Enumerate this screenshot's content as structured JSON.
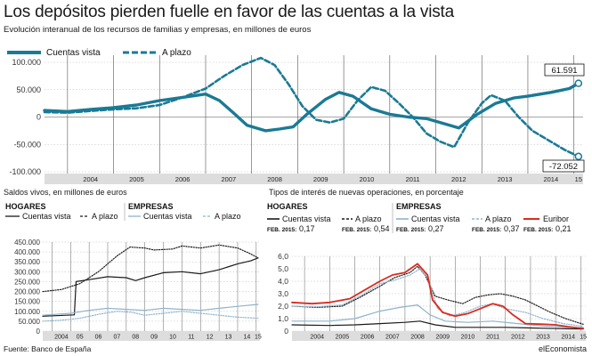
{
  "title": "Los depósitos pierden fuelle en favor de las cuentas a la vista",
  "subtitle": "Evolución interanual de los recursos de familias y empresas, en millones de euros",
  "source": "Fuente: Banco de España",
  "brand": "elEconomista",
  "colors": {
    "teal": "#1a7a95",
    "black": "#1a1a1a",
    "light_blue": "#8fb3cc",
    "red": "#d92b1f",
    "grid": "#bbbbbb",
    "axis_band": "#dddddd"
  },
  "chart_data": [
    {
      "id": "top",
      "type": "line",
      "legend": [
        "Cuentas vista",
        "A plazo"
      ],
      "x_ticks": [
        "2004",
        "2005",
        "2006",
        "2007",
        "2008",
        "2009",
        "2010",
        "2011",
        "2012",
        "2013",
        "2014",
        "15"
      ],
      "y_ticks": [
        "100.000",
        "50.000",
        "0",
        "-50.000",
        "-100.000"
      ],
      "ylim": [
        -100000,
        100000
      ],
      "xlim": [
        2003.5,
        2015.2
      ],
      "annotations": {
        "last_vista": "61.591",
        "last_plazo": "-72.052"
      },
      "series": [
        {
          "name": "Cuentas vista",
          "style": "solid",
          "points": [
            [
              2003.5,
              12000
            ],
            [
              2004.0,
              10000
            ],
            [
              2004.5,
              14000
            ],
            [
              2005.0,
              17000
            ],
            [
              2005.5,
              22000
            ],
            [
              2006.0,
              30000
            ],
            [
              2006.5,
              36000
            ],
            [
              2007.0,
              42000
            ],
            [
              2007.3,
              30000
            ],
            [
              2007.6,
              8000
            ],
            [
              2007.9,
              -15000
            ],
            [
              2008.3,
              -25000
            ],
            [
              2008.6,
              -22000
            ],
            [
              2008.9,
              -18000
            ],
            [
              2009.2,
              5000
            ],
            [
              2009.6,
              32000
            ],
            [
              2009.9,
              45000
            ],
            [
              2010.2,
              38000
            ],
            [
              2010.6,
              15000
            ],
            [
              2011.0,
              5000
            ],
            [
              2011.4,
              0
            ],
            [
              2011.8,
              -3000
            ],
            [
              2012.1,
              -10000
            ],
            [
              2012.5,
              -20000
            ],
            [
              2012.9,
              5000
            ],
            [
              2013.3,
              25000
            ],
            [
              2013.7,
              35000
            ],
            [
              2014.0,
              38000
            ],
            [
              2014.5,
              45000
            ],
            [
              2014.9,
              52000
            ],
            [
              2015.1,
              61591
            ]
          ]
        },
        {
          "name": "A plazo",
          "style": "dashed",
          "points": [
            [
              2003.5,
              9000
            ],
            [
              2004.0,
              8000
            ],
            [
              2004.5,
              11000
            ],
            [
              2005.0,
              14000
            ],
            [
              2005.5,
              16000
            ],
            [
              2006.0,
              22000
            ],
            [
              2006.5,
              36000
            ],
            [
              2007.0,
              52000
            ],
            [
              2007.4,
              75000
            ],
            [
              2007.8,
              95000
            ],
            [
              2008.2,
              108000
            ],
            [
              2008.5,
              95000
            ],
            [
              2008.8,
              60000
            ],
            [
              2009.1,
              20000
            ],
            [
              2009.4,
              -5000
            ],
            [
              2009.7,
              -10000
            ],
            [
              2010.0,
              -3000
            ],
            [
              2010.3,
              30000
            ],
            [
              2010.6,
              55000
            ],
            [
              2010.9,
              48000
            ],
            [
              2011.2,
              25000
            ],
            [
              2011.5,
              0
            ],
            [
              2011.8,
              -30000
            ],
            [
              2012.1,
              -45000
            ],
            [
              2012.4,
              -55000
            ],
            [
              2012.7,
              -10000
            ],
            [
              2013.0,
              25000
            ],
            [
              2013.2,
              40000
            ],
            [
              2013.5,
              30000
            ],
            [
              2013.8,
              0
            ],
            [
              2014.1,
              -25000
            ],
            [
              2014.5,
              -45000
            ],
            [
              2014.8,
              -60000
            ],
            [
              2015.1,
              -72052
            ]
          ]
        }
      ]
    },
    {
      "id": "saldos",
      "type": "line",
      "caption": "Saldos vivos, en millones de euros",
      "legend_groups": [
        {
          "group": "HOGARES",
          "items": [
            "Cuentas vista",
            "A plazo"
          ]
        },
        {
          "group": "EMPRESAS",
          "items": [
            "Cuentas vista",
            "A plazo"
          ]
        }
      ],
      "x_ticks": [
        "2004",
        "05",
        "06",
        "07",
        "08",
        "09",
        "10",
        "11",
        "12",
        "13",
        "14",
        "15"
      ],
      "y_ticks": [
        "450.000",
        "400.000",
        "350.000",
        "300.000",
        "250.000",
        "200.000",
        "150.000",
        "100.000",
        "50.000",
        "0"
      ],
      "ylim": [
        0,
        450000
      ],
      "xlim": [
        2003.5,
        2015.2
      ],
      "series": [
        {
          "name": "Hogares · Cuentas vista",
          "color": "black",
          "style": "solid",
          "points": [
            [
              2003.5,
              75000
            ],
            [
              2005.2,
              82000
            ],
            [
              2005.3,
              250000
            ],
            [
              2006.0,
              260000
            ],
            [
              2007.0,
              275000
            ],
            [
              2008.0,
              270000
            ],
            [
              2008.5,
              255000
            ],
            [
              2009.0,
              270000
            ],
            [
              2010.0,
              295000
            ],
            [
              2011.0,
              300000
            ],
            [
              2012.0,
              290000
            ],
            [
              2013.0,
              310000
            ],
            [
              2014.0,
              340000
            ],
            [
              2014.7,
              355000
            ],
            [
              2015.1,
              370000
            ]
          ]
        },
        {
          "name": "Hogares · A plazo",
          "color": "black",
          "style": "dotted",
          "points": [
            [
              2003.5,
              200000
            ],
            [
              2004.5,
              210000
            ],
            [
              2005.5,
              240000
            ],
            [
              2006.5,
              300000
            ],
            [
              2007.5,
              380000
            ],
            [
              2008.2,
              425000
            ],
            [
              2009.0,
              420000
            ],
            [
              2009.5,
              410000
            ],
            [
              2010.5,
              415000
            ],
            [
              2011.0,
              430000
            ],
            [
              2012.0,
              420000
            ],
            [
              2013.0,
              435000
            ],
            [
              2014.0,
              420000
            ],
            [
              2014.7,
              390000
            ],
            [
              2015.1,
              370000
            ]
          ]
        },
        {
          "name": "Empresas · Cuentas vista",
          "color": "light_blue",
          "style": "solid",
          "points": [
            [
              2003.5,
              80000
            ],
            [
              2005.0,
              90000
            ],
            [
              2006.0,
              105000
            ],
            [
              2007.0,
              115000
            ],
            [
              2008.0,
              110000
            ],
            [
              2009.0,
              105000
            ],
            [
              2010.0,
              115000
            ],
            [
              2011.0,
              110000
            ],
            [
              2012.0,
              105000
            ],
            [
              2013.0,
              115000
            ],
            [
              2014.0,
              125000
            ],
            [
              2015.1,
              135000
            ]
          ]
        },
        {
          "name": "Empresas · A plazo",
          "color": "light_blue",
          "style": "dotted",
          "points": [
            [
              2003.5,
              50000
            ],
            [
              2004.5,
              55000
            ],
            [
              2005.5,
              65000
            ],
            [
              2006.5,
              85000
            ],
            [
              2007.5,
              100000
            ],
            [
              2008.3,
              95000
            ],
            [
              2009.0,
              80000
            ],
            [
              2010.0,
              90000
            ],
            [
              2011.0,
              100000
            ],
            [
              2012.0,
              90000
            ],
            [
              2013.0,
              80000
            ],
            [
              2014.0,
              70000
            ],
            [
              2015.1,
              65000
            ]
          ]
        }
      ]
    },
    {
      "id": "tipos",
      "type": "line",
      "caption": "Tipos de interés de nuevas operaciones, en porcentaje",
      "legend_groups": [
        {
          "group": "HOGARES",
          "items": [
            {
              "label": "Cuentas vista",
              "prefix": "FEB. 2015:",
              "value": "0,17"
            },
            {
              "label": "A plazo",
              "prefix": "FEB. 2015:",
              "value": "0,54"
            }
          ]
        },
        {
          "group": "EMPRESAS",
          "items": [
            {
              "label": "Cuentas vista",
              "prefix": "FEB. 2015:",
              "value": "0,27"
            },
            {
              "label": "A plazo",
              "prefix": "FEB. 2015:",
              "value": "0,37"
            },
            {
              "label": "Euribor",
              "prefix": "FEB. 2015:",
              "value": "0,21"
            }
          ]
        }
      ],
      "x_ticks": [
        "2004",
        "2005",
        "2006",
        "2007",
        "2008",
        "2009",
        "2010",
        "2011",
        "2012",
        "2013",
        "2014",
        "15"
      ],
      "y_ticks": [
        "6,0",
        "5,0",
        "4,0",
        "3,0",
        "2,0",
        "1,0",
        "0"
      ],
      "ylim": [
        0,
        6
      ],
      "xlim": [
        2003.5,
        2015.2
      ],
      "series": [
        {
          "name": "Hogares · Cuentas vista",
          "color": "black",
          "style": "solid",
          "points": [
            [
              2003.5,
              0.5
            ],
            [
              2005.0,
              0.45
            ],
            [
              2006.0,
              0.5
            ],
            [
              2007.0,
              0.6
            ],
            [
              2008.0,
              0.7
            ],
            [
              2008.6,
              0.8
            ],
            [
              2009.2,
              0.5
            ],
            [
              2010.0,
              0.3
            ],
            [
              2011.0,
              0.3
            ],
            [
              2012.0,
              0.3
            ],
            [
              2013.0,
              0.25
            ],
            [
              2014.0,
              0.2
            ],
            [
              2015.1,
              0.17
            ]
          ]
        },
        {
          "name": "Hogares · A plazo",
          "color": "black",
          "style": "dotted",
          "points": [
            [
              2003.5,
              2.0
            ],
            [
              2004.5,
              1.9
            ],
            [
              2005.5,
              2.0
            ],
            [
              2006.2,
              2.7
            ],
            [
              2007.0,
              3.6
            ],
            [
              2007.6,
              4.3
            ],
            [
              2008.2,
              4.7
            ],
            [
              2008.5,
              5.2
            ],
            [
              2008.8,
              4.5
            ],
            [
              2009.2,
              2.8
            ],
            [
              2009.7,
              2.5
            ],
            [
              2010.3,
              2.2
            ],
            [
              2010.8,
              2.7
            ],
            [
              2011.3,
              2.9
            ],
            [
              2011.8,
              3.0
            ],
            [
              2012.3,
              2.8
            ],
            [
              2012.8,
              2.5
            ],
            [
              2013.3,
              2.0
            ],
            [
              2013.8,
              1.5
            ],
            [
              2014.4,
              1.0
            ],
            [
              2015.1,
              0.54
            ]
          ]
        },
        {
          "name": "Empresas · Cuentas vista",
          "color": "light_blue",
          "style": "solid",
          "points": [
            [
              2003.5,
              0.8
            ],
            [
              2005.0,
              0.8
            ],
            [
              2006.0,
              1.0
            ],
            [
              2007.0,
              1.6
            ],
            [
              2007.8,
              1.9
            ],
            [
              2008.5,
              2.1
            ],
            [
              2009.0,
              1.3
            ],
            [
              2009.6,
              0.8
            ],
            [
              2010.5,
              0.7
            ],
            [
              2011.5,
              0.8
            ],
            [
              2012.5,
              0.6
            ],
            [
              2013.5,
              0.4
            ],
            [
              2014.5,
              0.3
            ],
            [
              2015.1,
              0.27
            ]
          ]
        },
        {
          "name": "Empresas · A plazo",
          "color": "light_blue",
          "style": "dotted",
          "points": [
            [
              2003.5,
              2.0
            ],
            [
              2004.5,
              1.95
            ],
            [
              2005.5,
              2.1
            ],
            [
              2006.3,
              2.9
            ],
            [
              2007.0,
              3.8
            ],
            [
              2007.6,
              4.1
            ],
            [
              2008.2,
              4.5
            ],
            [
              2008.6,
              5.0
            ],
            [
              2008.9,
              4.3
            ],
            [
              2009.3,
              1.8
            ],
            [
              2009.8,
              1.2
            ],
            [
              2010.4,
              1.5
            ],
            [
              2011.0,
              2.0
            ],
            [
              2011.5,
              2.2
            ],
            [
              2012.0,
              1.8
            ],
            [
              2012.8,
              1.5
            ],
            [
              2013.5,
              1.0
            ],
            [
              2014.3,
              0.6
            ],
            [
              2015.1,
              0.37
            ]
          ]
        },
        {
          "name": "Euribor",
          "color": "red",
          "style": "solid",
          "points": [
            [
              2003.5,
              2.3
            ],
            [
              2004.3,
              2.2
            ],
            [
              2005.0,
              2.3
            ],
            [
              2005.8,
              2.6
            ],
            [
              2006.4,
              3.3
            ],
            [
              2007.0,
              4.0
            ],
            [
              2007.5,
              4.5
            ],
            [
              2008.0,
              4.7
            ],
            [
              2008.5,
              5.4
            ],
            [
              2008.9,
              4.5
            ],
            [
              2009.1,
              2.5
            ],
            [
              2009.5,
              1.5
            ],
            [
              2010.0,
              1.2
            ],
            [
              2010.5,
              1.4
            ],
            [
              2011.0,
              1.8
            ],
            [
              2011.5,
              2.2
            ],
            [
              2011.9,
              2.0
            ],
            [
              2012.3,
              1.3
            ],
            [
              2012.8,
              0.6
            ],
            [
              2013.5,
              0.55
            ],
            [
              2014.0,
              0.5
            ],
            [
              2014.5,
              0.35
            ],
            [
              2015.1,
              0.21
            ]
          ]
        }
      ]
    }
  ]
}
